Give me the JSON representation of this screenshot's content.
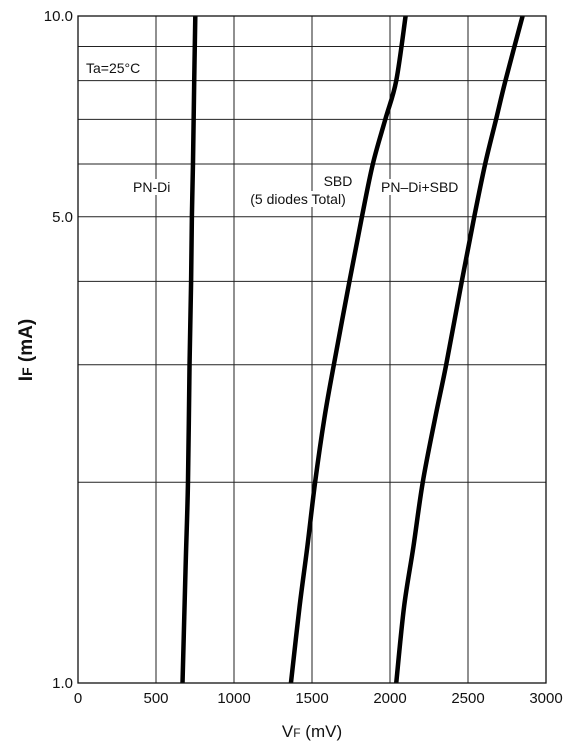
{
  "chart_data": {
    "type": "line",
    "x_scale": "linear",
    "y_scale": "log",
    "xlim": [
      0,
      3000
    ],
    "ylim": [
      1.0,
      10.0
    ],
    "x_ticks": [
      0,
      500,
      1000,
      1500,
      2000,
      2500,
      3000
    ],
    "x_tick_labels": [
      "0",
      "500",
      "1000",
      "1500",
      "2000",
      "2500",
      "3000"
    ],
    "y_tick_labels": [
      {
        "value": 1.0,
        "label": "1.0"
      },
      {
        "value": 5.0,
        "label": "5.0"
      },
      {
        "value": 10.0,
        "label": "10.0"
      }
    ],
    "y_gridlines": [
      1,
      2,
      3,
      4,
      5,
      6,
      7,
      8,
      9,
      10
    ],
    "grid": true,
    "xlabel_main": "V",
    "xlabel_sub": "F",
    "xlabel_unit": " (mV)",
    "ylabel_main": "I",
    "ylabel_sub": "F",
    "ylabel_unit": " (mA)",
    "annotations": {
      "temp": "Ta=25°C",
      "pn": "PN-Di",
      "sbd_1": "SBD",
      "sbd_2": "(5 diodes Total)",
      "combo": "PN–Di+SBD"
    },
    "series": [
      {
        "name": "PN-Di",
        "color": "#000000",
        "points": [
          [
            670,
            1.0
          ],
          [
            690,
            1.5
          ],
          [
            705,
            2.0
          ],
          [
            715,
            3.0
          ],
          [
            725,
            4.0
          ],
          [
            730,
            5.0
          ],
          [
            737,
            6.0
          ],
          [
            745,
            8.0
          ],
          [
            752,
            10.0
          ]
        ]
      },
      {
        "name": "SBD",
        "color": "#000000",
        "points": [
          [
            1365,
            1.0
          ],
          [
            1420,
            1.3
          ],
          [
            1470,
            1.6
          ],
          [
            1520,
            2.0
          ],
          [
            1580,
            2.5
          ],
          [
            1640,
            3.0
          ],
          [
            1740,
            4.0
          ],
          [
            1820,
            5.0
          ],
          [
            1890,
            6.0
          ],
          [
            1970,
            7.0
          ],
          [
            2040,
            8.0
          ],
          [
            2100,
            10.0
          ]
        ]
      },
      {
        "name": "PN–Di+SBD",
        "color": "#000000",
        "points": [
          [
            2040,
            1.0
          ],
          [
            2090,
            1.3
          ],
          [
            2150,
            1.6
          ],
          [
            2210,
            2.0
          ],
          [
            2290,
            2.5
          ],
          [
            2360,
            3.0
          ],
          [
            2460,
            4.0
          ],
          [
            2540,
            5.0
          ],
          [
            2610,
            6.0
          ],
          [
            2680,
            7.0
          ],
          [
            2740,
            8.0
          ],
          [
            2850,
            10.0
          ]
        ]
      }
    ]
  }
}
